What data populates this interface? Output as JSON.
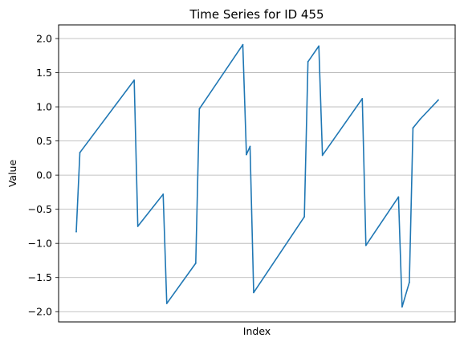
{
  "chart_data": {
    "type": "line",
    "title": "Time Series for ID 455",
    "xlabel": "Index",
    "ylabel": "Value",
    "ylim": [
      -2.15,
      2.2
    ],
    "yticks": [
      -2.0,
      -1.5,
      -1.0,
      -0.5,
      0.0,
      0.5,
      1.0,
      1.5,
      2.0
    ],
    "ytick_labels": [
      "−2.0",
      "−1.5",
      "−1.0",
      "−0.5",
      "0.0",
      "0.5",
      "1.0",
      "1.5",
      "2.0"
    ],
    "xticks_visible": false,
    "grid": "y-axis only",
    "line_color": "#1f77b4",
    "grid_color": "#b0b0b0",
    "series": [
      {
        "x": [
          0,
          1,
          16,
          17,
          24,
          25,
          33,
          34,
          46,
          47,
          48,
          49,
          63,
          64,
          67,
          68,
          79,
          80,
          89,
          90,
          92,
          93,
          95,
          100
        ],
        "values": [
          -0.83,
          0.33,
          1.39,
          -0.75,
          -0.28,
          -1.88,
          -1.29,
          0.97,
          1.91,
          0.3,
          0.42,
          -1.72,
          -0.61,
          1.66,
          1.89,
          0.29,
          1.12,
          -1.03,
          -0.32,
          -1.93,
          -1.57,
          0.69,
          0.82,
          1.1
        ]
      }
    ]
  }
}
